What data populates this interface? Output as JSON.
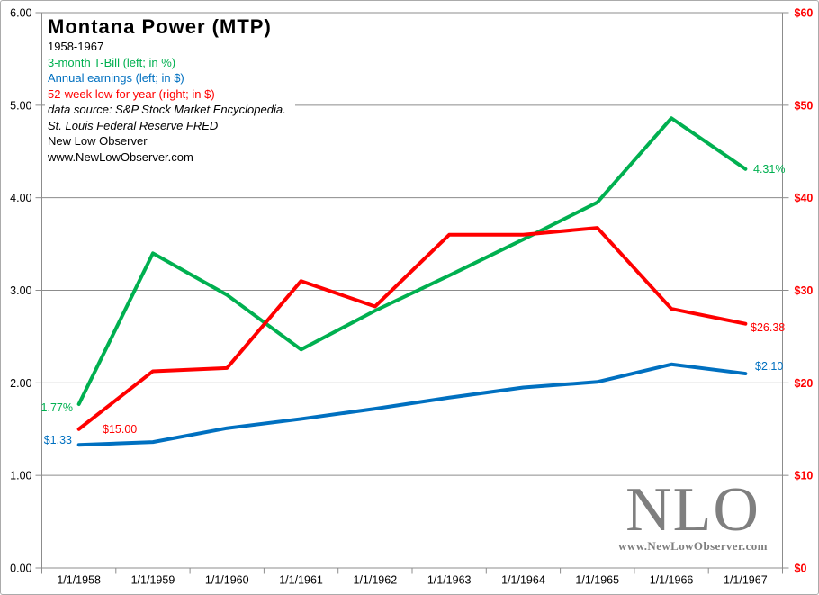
{
  "header": {
    "title": "Montana Power (MTP)",
    "subtitle": "1958-1967",
    "legend_tbill": "3-month T-Bill (left; in %)",
    "legend_earnings": "Annual earnings  (left; in $)",
    "legend_low": "52-week low for year (right; in $)",
    "source_line1": "data source: S&P Stock Market Encyclopedia.",
    "source_line2": "St. Louis Federal Reserve FRED",
    "source_line3": "New Low Observer",
    "source_line4": "www.NewLowObserver.com"
  },
  "logo": {
    "text": "NLO",
    "url": "www.NewLowObserver.com"
  },
  "colors": {
    "tbill_green": "#00B050",
    "earnings_blue": "#0070C0",
    "low_red": "#FF0000",
    "grid_gray": "#8c8c8c",
    "logo_gray": "#7F7F7F"
  },
  "chart_data": {
    "type": "line",
    "title": "Montana Power (MTP)",
    "x_labels": [
      "1/1/1958",
      "1/1/1959",
      "1/1/1960",
      "1/1/1961",
      "1/1/1962",
      "1/1/1963",
      "1/1/1964",
      "1/1/1965",
      "1/1/1966",
      "1/1/1967"
    ],
    "left_axis": {
      "min": 0,
      "max": 6,
      "step": 1,
      "ticks_top_to_bottom": [
        "6.00",
        "5.00",
        "4.00",
        "3.00",
        "2.00",
        "1.00",
        "0.00"
      ]
    },
    "right_axis": {
      "min": 0,
      "max": 60,
      "step": 10,
      "ticks_top_to_bottom": [
        "$60",
        "$50",
        "$40",
        "$30",
        "$20",
        "$10",
        "$0"
      ]
    },
    "grid": true,
    "legend_position": "in-title-block",
    "series": [
      {
        "name": "3-month T-Bill",
        "axis": "left",
        "units": "%",
        "color": "#00B050",
        "values": [
          1.77,
          3.4,
          2.95,
          2.36,
          2.78,
          3.16,
          3.55,
          3.95,
          4.86,
          4.31
        ]
      },
      {
        "name": "Annual earnings",
        "axis": "left",
        "units": "$",
        "color": "#0070C0",
        "values": [
          1.33,
          1.36,
          1.51,
          1.61,
          1.72,
          1.84,
          1.95,
          2.01,
          2.2,
          2.1
        ]
      },
      {
        "name": "52-week low for year",
        "axis": "right",
        "units": "$",
        "color": "#FF0000",
        "values": [
          15.0,
          21.25,
          21.6,
          31.0,
          28.25,
          36.0,
          36.0,
          36.75,
          28.0,
          26.38
        ]
      }
    ],
    "annotations": [
      {
        "text": "1.77%",
        "series": 0,
        "point": 0,
        "color": "#00B050"
      },
      {
        "text": "$15.00",
        "series": 2,
        "point": 0,
        "color": "#FF0000"
      },
      {
        "text": "$1.33",
        "series": 1,
        "point": 0,
        "color": "#0070C0"
      },
      {
        "text": "4.31%",
        "series": 0,
        "point": 9,
        "color": "#00B050"
      },
      {
        "text": "$26.38",
        "series": 2,
        "point": 9,
        "color": "#FF0000"
      },
      {
        "text": "$2.10",
        "series": 1,
        "point": 9,
        "color": "#0070C0"
      }
    ]
  }
}
